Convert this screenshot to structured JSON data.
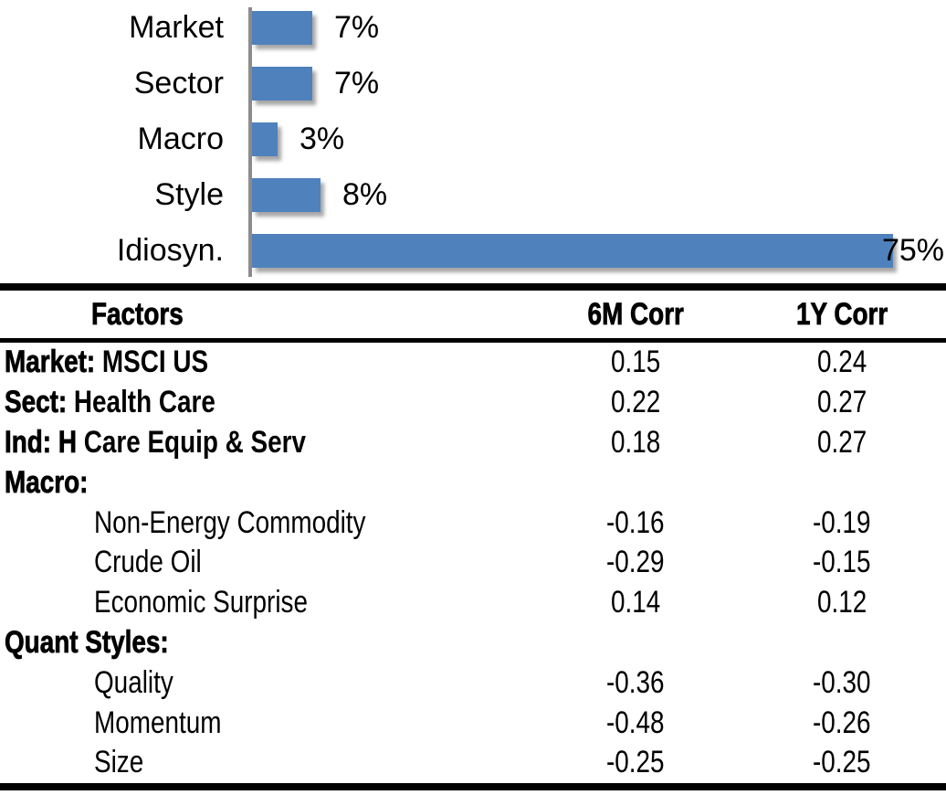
{
  "chart_data": [
    {
      "type": "bar",
      "orientation": "horizontal",
      "title": "",
      "xlabel": "",
      "ylabel": "",
      "categories": [
        "Market",
        "Sector",
        "Macro",
        "Style",
        "Idiosyn."
      ],
      "values": [
        7,
        7,
        3,
        8,
        75
      ],
      "value_labels": [
        "7%",
        "7%",
        "3%",
        "8%",
        "75%"
      ],
      "xlim": [
        0,
        78
      ],
      "grid": false,
      "legend": false,
      "bar_color": "#4f81bd",
      "axis_color": "#8c8c8c",
      "label_color": "#000000"
    },
    {
      "type": "table",
      "columns": [
        "Factors",
        "6M Corr",
        "1Y Corr"
      ],
      "rows": [
        {
          "factor_bold": "Market:",
          "factor_rest": " MSCI US",
          "indent": 0,
          "corr_6m": "0.15",
          "corr_1y": "0.24"
        },
        {
          "factor_bold": "Sect:",
          "factor_rest": " Health Care",
          "indent": 0,
          "corr_6m": "0.22",
          "corr_1y": "0.27"
        },
        {
          "factor_bold": "Ind: H",
          "factor_rest": " Care Equip & Serv",
          "indent": 0,
          "corr_6m": "0.18",
          "corr_1y": "0.27"
        },
        {
          "factor_bold": "Macro:",
          "factor_rest": "",
          "indent": 0,
          "corr_6m": "",
          "corr_1y": ""
        },
        {
          "factor_bold": "",
          "factor_rest": "Non-Energy Commodity",
          "indent": 1,
          "corr_6m": "-0.16",
          "corr_1y": "-0.19"
        },
        {
          "factor_bold": "",
          "factor_rest": "Crude Oil",
          "indent": 1,
          "corr_6m": "-0.29",
          "corr_1y": "-0.15"
        },
        {
          "factor_bold": "",
          "factor_rest": "Economic Surprise",
          "indent": 1,
          "corr_6m": "0.14",
          "corr_1y": "0.12"
        },
        {
          "factor_bold": "Quant Styles:",
          "factor_rest": "",
          "indent": 0,
          "corr_6m": "",
          "corr_1y": ""
        },
        {
          "factor_bold": "",
          "factor_rest": "Quality",
          "indent": 1,
          "corr_6m": "-0.36",
          "corr_1y": "-0.30"
        },
        {
          "factor_bold": "",
          "factor_rest": "Momentum",
          "indent": 1,
          "corr_6m": "-0.48",
          "corr_1y": "-0.26"
        },
        {
          "factor_bold": "",
          "factor_rest": "Size",
          "indent": 1,
          "corr_6m": "-0.25",
          "corr_1y": "-0.25"
        }
      ]
    }
  ]
}
